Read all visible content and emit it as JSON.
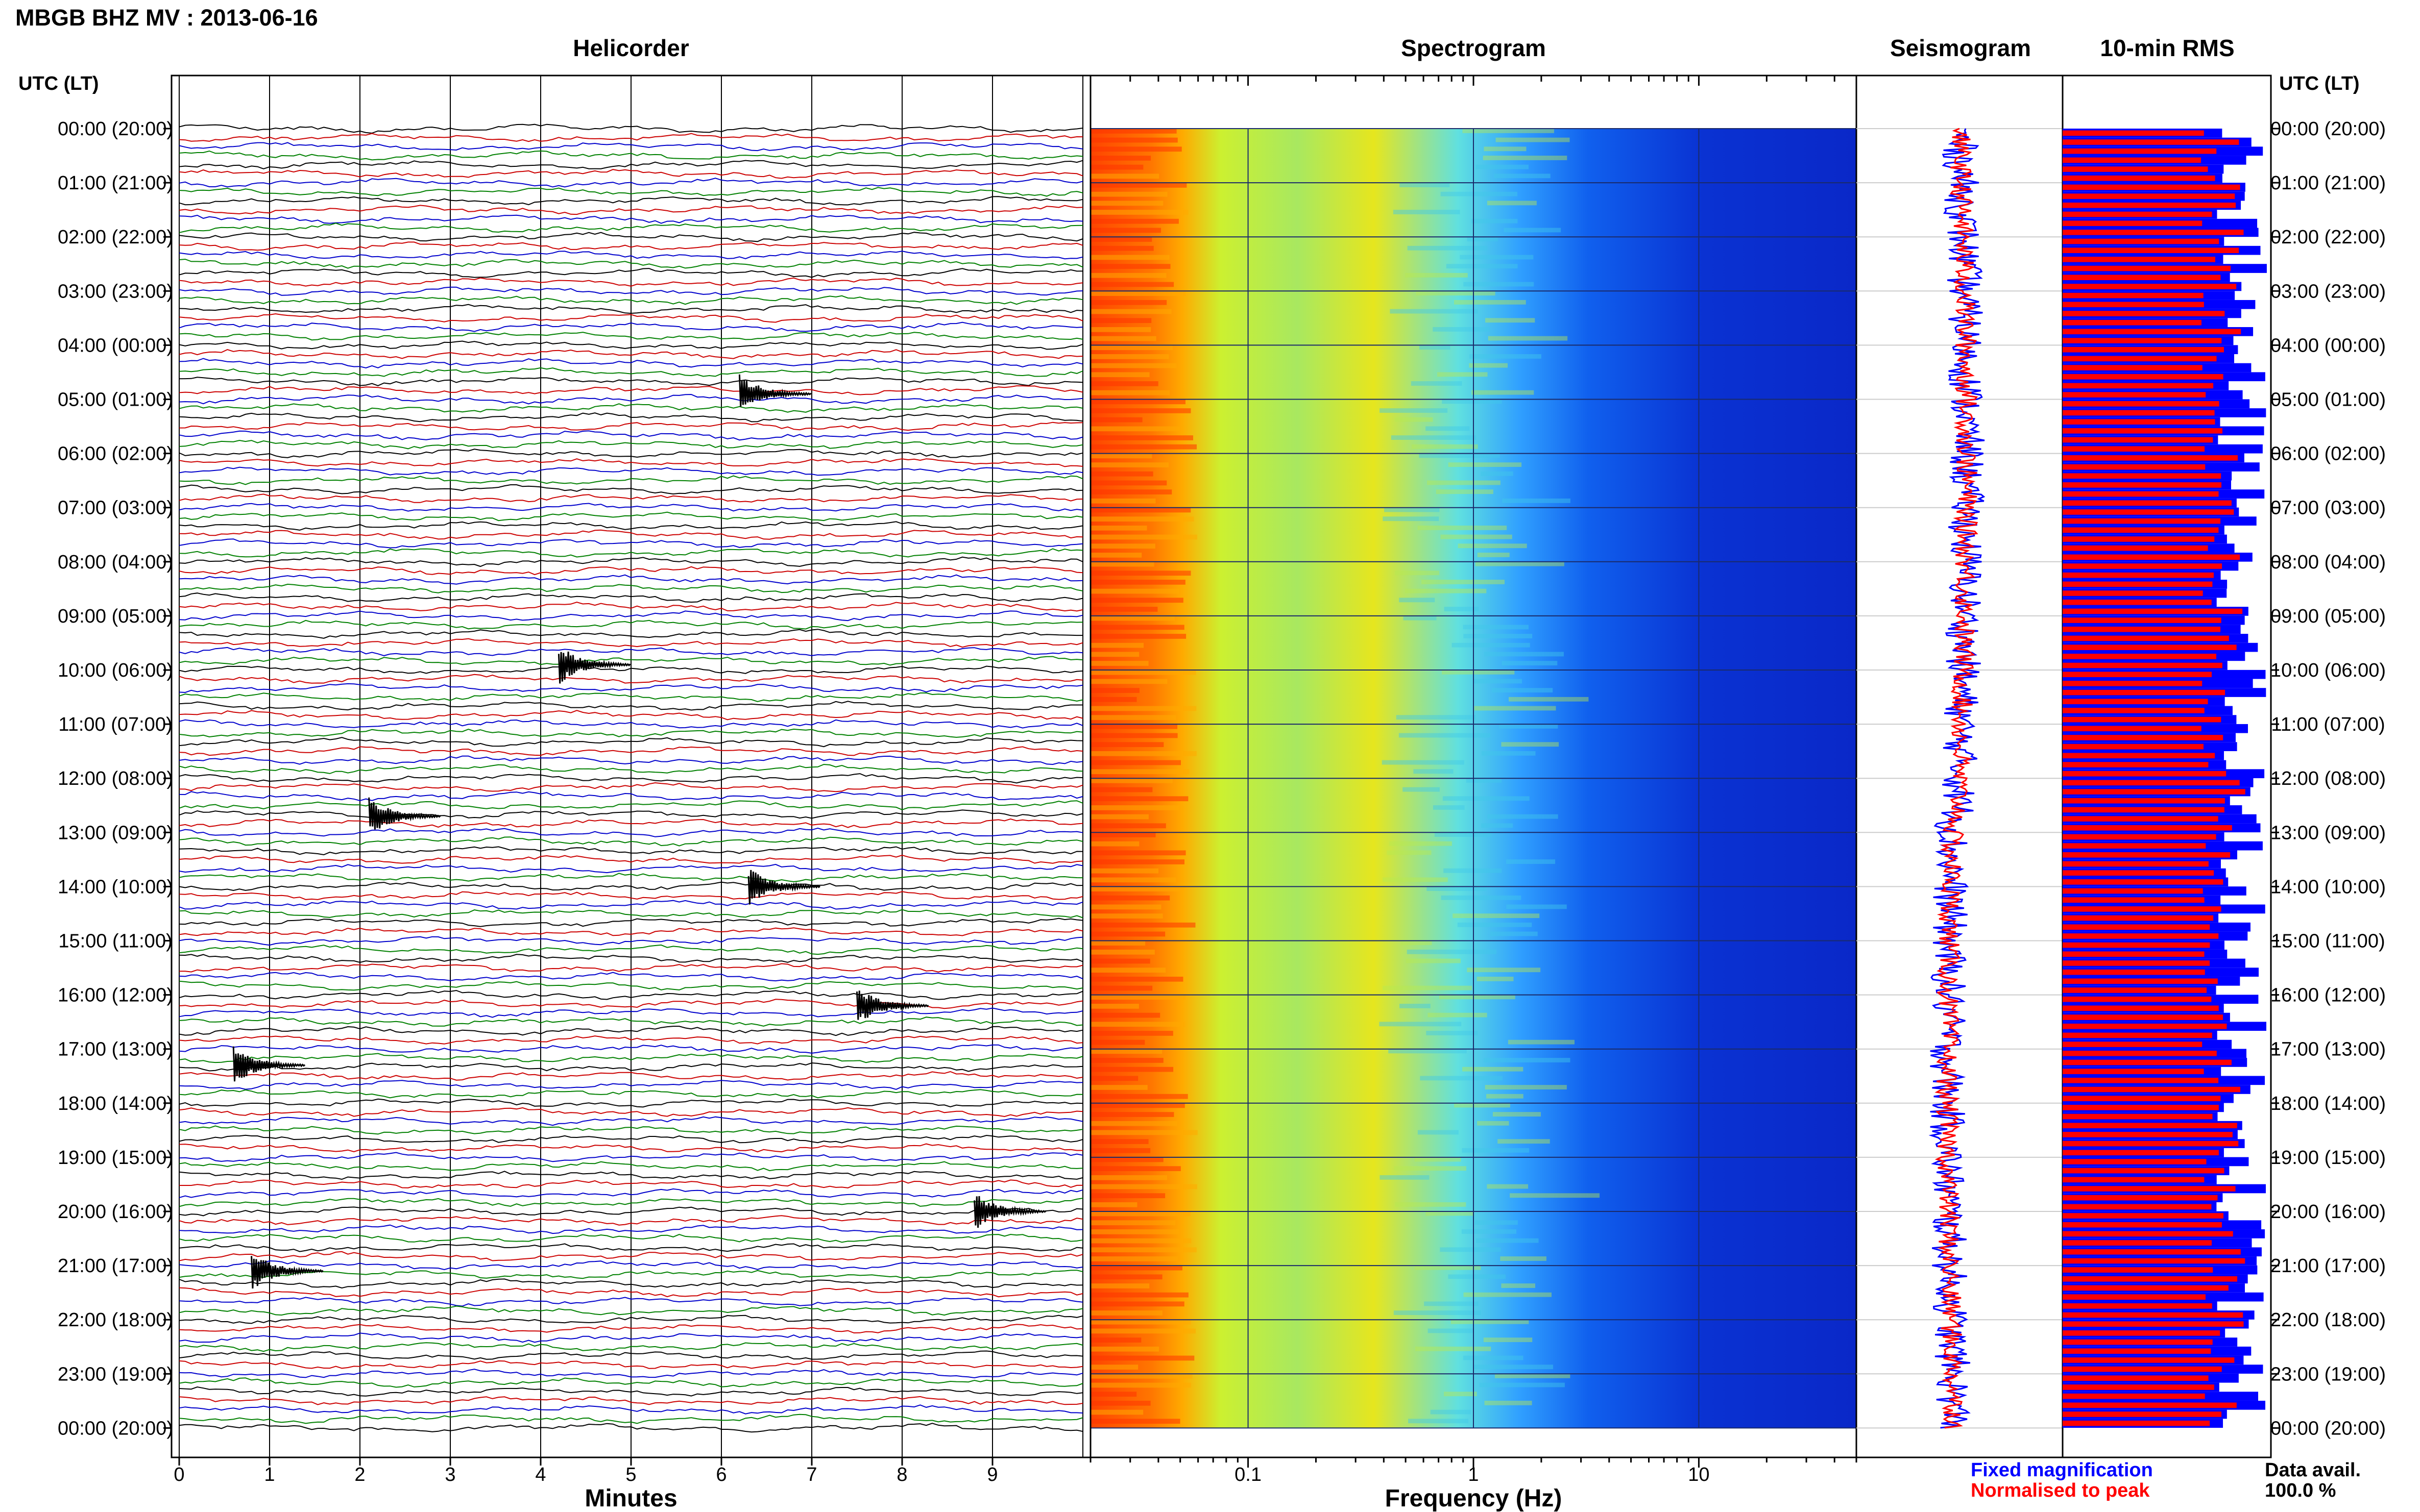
{
  "title": "MBGB BHZ MV : 2013-06-16",
  "panels": {
    "helicorder": "Helicorder",
    "spectrogram": "Spectrogram",
    "seismogram": "Seismogram",
    "rms": "10-min RMS"
  },
  "time_axis_label": "UTC (LT)",
  "time_labels": [
    "00:00 (20:00)",
    "01:00 (21:00)",
    "02:00 (22:00)",
    "03:00 (23:00)",
    "04:00 (00:00)",
    "05:00 (01:00)",
    "06:00 (02:00)",
    "07:00 (03:00)",
    "08:00 (04:00)",
    "09:00 (05:00)",
    "10:00 (06:00)",
    "11:00 (07:00)",
    "12:00 (08:00)",
    "13:00 (09:00)",
    "14:00 (10:00)",
    "15:00 (11:00)",
    "16:00 (12:00)",
    "17:00 (13:00)",
    "18:00 (14:00)",
    "19:00 (15:00)",
    "20:00 (16:00)",
    "21:00 (17:00)",
    "22:00 (18:00)",
    "23:00 (19:00)",
    "00:00 (20:00)"
  ],
  "minutes_axis": {
    "label": "Minutes",
    "ticks": [
      "0",
      "1",
      "2",
      "3",
      "4",
      "5",
      "6",
      "7",
      "8",
      "9"
    ]
  },
  "frequency_axis": {
    "label": "Frequency (Hz)",
    "ticks": [
      "0.1",
      "1",
      "10"
    ],
    "scale": "log",
    "range": [
      0.02,
      50
    ]
  },
  "legend": {
    "fixed": "Fixed magnification",
    "normalised": "Normalised to peak"
  },
  "availability": {
    "label": "Data avail.",
    "value": "100.0 %"
  },
  "colors": {
    "fixed": "#0000ff",
    "normalised": "#ff0000",
    "trace_cycle": [
      "#000000",
      "#cc0000",
      "#0000cc",
      "#008000"
    ]
  },
  "chart_data": [
    {
      "type": "line",
      "title": "Helicorder",
      "xlabel": "Minutes",
      "xlim": [
        0,
        10
      ],
      "lines_per_hour": 6,
      "hours": 24,
      "events": [
        {
          "hour": 4.9,
          "minute": 6.2
        },
        {
          "hour": 9.9,
          "minute": 4.2
        },
        {
          "hour": 12.7,
          "minute": 2.1
        },
        {
          "hour": 14.0,
          "minute": 6.3
        },
        {
          "hour": 16.2,
          "minute": 7.5
        },
        {
          "hour": 17.3,
          "minute": 0.6
        },
        {
          "hour": 20.0,
          "minute": 8.8
        },
        {
          "hour": 21.1,
          "minute": 0.8
        }
      ]
    },
    {
      "type": "heatmap",
      "title": "Spectrogram",
      "xlabel": "Frequency (Hz)",
      "xscale": "log",
      "xlim": [
        0.02,
        50
      ],
      "ylabel": "UTC (LT)",
      "ylim": [
        0,
        24
      ]
    },
    {
      "type": "line",
      "title": "Seismogram",
      "series": [
        {
          "name": "Fixed magnification",
          "color": "#0000ff"
        },
        {
          "name": "Normalised to peak",
          "color": "#ff0000"
        }
      ]
    },
    {
      "type": "bar",
      "title": "10-min RMS",
      "series": [
        {
          "name": "Fixed magnification",
          "color": "#0000ff"
        },
        {
          "name": "Normalised to peak",
          "color": "#ff0000"
        }
      ]
    }
  ]
}
